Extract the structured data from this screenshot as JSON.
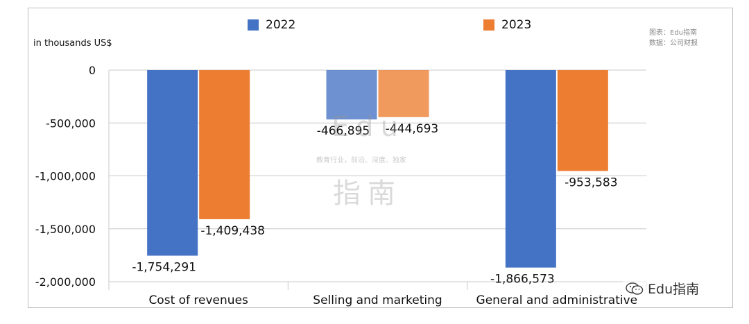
{
  "header": {
    "unit_label": "in thousands US$",
    "source_line1": "图表：Edu指南",
    "source_line2": "数据：公司财报"
  },
  "legend": [
    {
      "label": "2022",
      "color": "#4472C4"
    },
    {
      "label": "2023",
      "color": "#ED7D31"
    }
  ],
  "watermark": {
    "top_text": "Edu",
    "tagline": "教育行业，前沿、深度、独家",
    "bottom_text": "指南",
    "stamp_text": "Edu指南",
    "stamp_icon": "wechat-icon"
  },
  "chart_data": {
    "type": "bar",
    "title": "",
    "xlabel": "",
    "ylabel": "in thousands US$",
    "categories": [
      "Cost of revenues",
      "Selling and marketing",
      "General and administrative"
    ],
    "series": [
      {
        "name": "2022",
        "color": "#4472C4",
        "values": [
          -1754291,
          -466895,
          -1866573
        ]
      },
      {
        "name": "2023",
        "color": "#ED7D31",
        "values": [
          -1409438,
          -444693,
          -953583
        ]
      }
    ],
    "data_labels": [
      [
        "-1,754,291",
        "-466,895",
        "-1,866,573"
      ],
      [
        "-1,409,438",
        "-444,693",
        "-953,583"
      ]
    ],
    "y_ticks": [
      0,
      -500000,
      -1000000,
      -1500000,
      -2000000
    ],
    "y_tick_labels": [
      "0",
      "-500,000",
      "-1,000,000",
      "-1,500,000",
      "-2,000,000"
    ],
    "ylim": [
      -2000000,
      0
    ],
    "grid": true,
    "legend_position": "top"
  }
}
